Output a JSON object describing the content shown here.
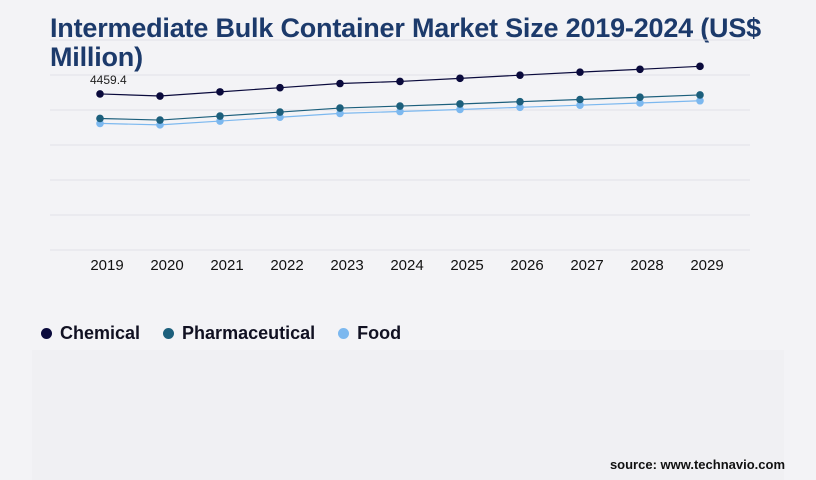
{
  "chart_title": "Intermediate Bulk Container Market Size 2019-2024 (US$ Million)",
  "source": "source: www.technavio.com",
  "chart_data": {
    "type": "line",
    "title": "Intermediate Bulk Container Market Size 2019-2024 (US$ Million)",
    "xlabel": "",
    "ylabel": "",
    "x": [
      "2019",
      "2020",
      "2021",
      "2022",
      "2023",
      "2024",
      "2025",
      "2026",
      "2027",
      "2028",
      "2029"
    ],
    "series": [
      {
        "name": "Chemical",
        "color": "#0a0a3c",
        "values": [
          4459.4,
          4399,
          4518,
          4637,
          4757,
          4816,
          4904,
          4995,
          5082,
          5163,
          5248
        ]
      },
      {
        "name": "Pharmaceutical",
        "color": "#1c5f7c",
        "values": [
          3758,
          3713,
          3827,
          3941,
          4056,
          4112,
          4172,
          4237,
          4300,
          4365,
          4430
        ]
      },
      {
        "name": "Food",
        "color": "#7cb8ef",
        "values": [
          3617,
          3575,
          3684,
          3793,
          3903,
          3957,
          4015,
          4077,
          4138,
          4200,
          4264
        ]
      }
    ],
    "data_labels": [
      {
        "series": "Chemical",
        "x": "2019",
        "text": "4459.4"
      }
    ],
    "ylim": [
      0,
      6000
    ],
    "grid": true,
    "legend_position": "bottom-left"
  }
}
